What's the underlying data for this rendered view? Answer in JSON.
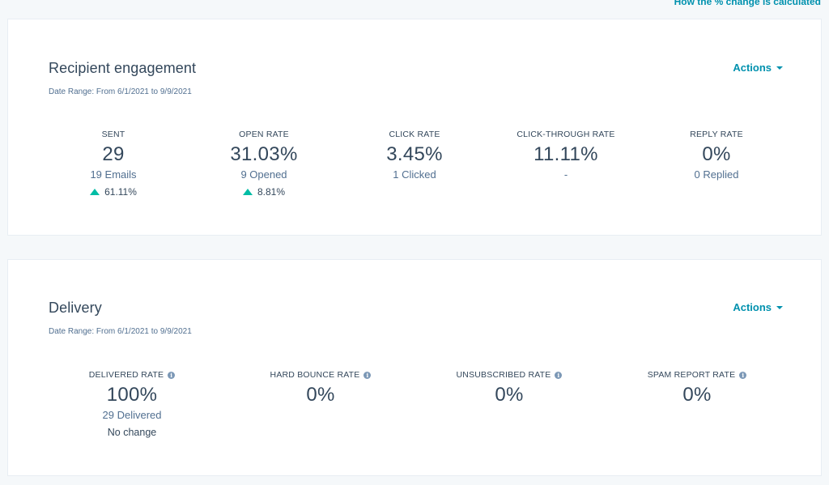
{
  "top_link": "How the % change is calculated",
  "engagement": {
    "title": "Recipient engagement",
    "date_range": "Date Range: From 6/1/2021 to 9/9/2021",
    "actions_label": "Actions",
    "metrics": [
      {
        "label": "SENT",
        "value": "29",
        "sub": "19 Emails",
        "change": "61.11%",
        "trend": "up"
      },
      {
        "label": "OPEN RATE",
        "value": "31.03%",
        "sub": "9 Opened",
        "change": "8.81%",
        "trend": "up"
      },
      {
        "label": "CLICK RATE",
        "value": "3.45%",
        "sub": "1 Clicked"
      },
      {
        "label": "CLICK-THROUGH RATE",
        "value": "11.11%",
        "sub": "-"
      },
      {
        "label": "REPLY RATE",
        "value": "0%",
        "sub": "0 Replied"
      }
    ]
  },
  "delivery": {
    "title": "Delivery",
    "date_range": "Date Range: From 6/1/2021 to 9/9/2021",
    "actions_label": "Actions",
    "metrics": [
      {
        "label": "DELIVERED RATE",
        "value": "100%",
        "sub": "29 Delivered",
        "change": "No change"
      },
      {
        "label": "HARD BOUNCE RATE",
        "value": "0%"
      },
      {
        "label": "UNSUBSCRIBED RATE",
        "value": "0%"
      },
      {
        "label": "SPAM REPORT RATE",
        "value": "0%"
      }
    ]
  },
  "icons": {
    "info": "info-icon",
    "trend_up": "up-arrow-icon",
    "dropdown": "caret-down-icon"
  },
  "colors": {
    "background": "#f5f8fa",
    "card": "#ffffff",
    "text": "#33475b",
    "link": "#0091ae",
    "trend_up": "#00bda5",
    "info_icon": "#7c98b6"
  }
}
